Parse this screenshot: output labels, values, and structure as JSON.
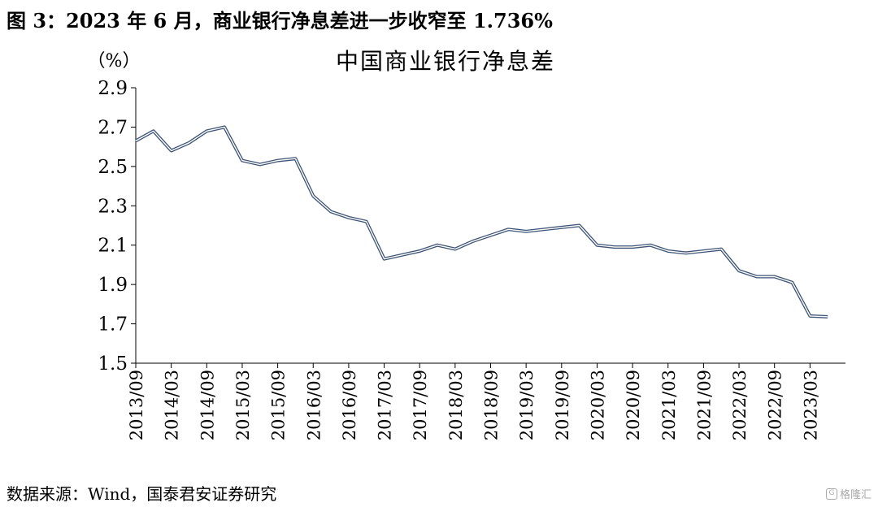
{
  "figure_title": "图 3：2023 年 6 月，商业银行净息差进一步收窄至 1.736%",
  "source_note": "数据来源：Wind，国泰君安证券研究",
  "watermark_text": "格隆汇",
  "chart_data": {
    "type": "line",
    "title": "中国商业银行净息差",
    "ylabel": "（%）",
    "xlabel": "",
    "ylim": [
      1.5,
      2.9
    ],
    "yticks": [
      1.5,
      1.7,
      1.9,
      2.1,
      2.3,
      2.5,
      2.7,
      2.9
    ],
    "tick_labels": [
      "2013/09",
      "2014/03",
      "2014/09",
      "2015/03",
      "2015/09",
      "2016/03",
      "2016/09",
      "2017/03",
      "2017/09",
      "2018/03",
      "2018/09",
      "2019/03",
      "2019/09",
      "2020/03",
      "2020/09",
      "2021/03",
      "2021/09",
      "2022/03",
      "2022/09",
      "2023/03"
    ],
    "grid": false,
    "legend": "none",
    "line_color": "#3d5475",
    "x": [
      "2013/09",
      "2013/12",
      "2014/03",
      "2014/06",
      "2014/09",
      "2014/12",
      "2015/03",
      "2015/06",
      "2015/09",
      "2015/12",
      "2016/03",
      "2016/06",
      "2016/09",
      "2016/12",
      "2017/03",
      "2017/06",
      "2017/09",
      "2017/12",
      "2018/03",
      "2018/06",
      "2018/09",
      "2018/12",
      "2019/03",
      "2019/06",
      "2019/09",
      "2019/12",
      "2020/03",
      "2020/06",
      "2020/09",
      "2020/12",
      "2021/03",
      "2021/06",
      "2021/09",
      "2021/12",
      "2022/03",
      "2022/06",
      "2022/09",
      "2022/12",
      "2023/03",
      "2023/06"
    ],
    "values": [
      2.63,
      2.68,
      2.58,
      2.62,
      2.68,
      2.7,
      2.53,
      2.51,
      2.53,
      2.54,
      2.35,
      2.27,
      2.24,
      2.22,
      2.03,
      2.05,
      2.07,
      2.1,
      2.08,
      2.12,
      2.15,
      2.18,
      2.17,
      2.18,
      2.19,
      2.2,
      2.1,
      2.09,
      2.09,
      2.1,
      2.07,
      2.06,
      2.07,
      2.08,
      1.97,
      1.94,
      1.94,
      1.91,
      1.74,
      1.736
    ]
  }
}
